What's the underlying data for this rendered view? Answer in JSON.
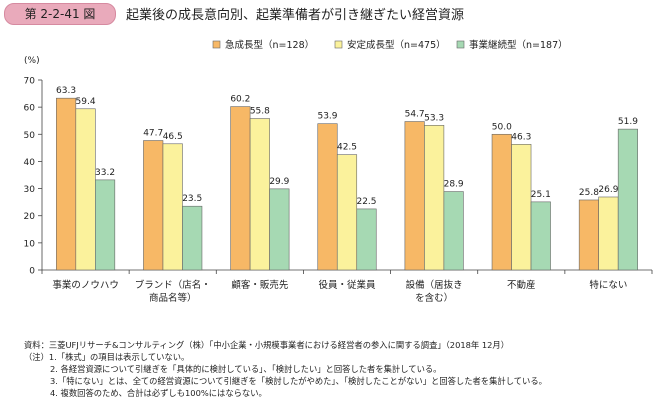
{
  "header": {
    "badge": "第 2-2-41 図",
    "title": "起業後の成長意向別、起業準備者が引き継ぎたい経営資源"
  },
  "chart_data": {
    "type": "bar",
    "title": "起業後の成長意向別、起業準備者が引き継ぎたい経営資源",
    "ylabel": "(%)",
    "xlabel": "",
    "ylim": [
      0,
      70
    ],
    "yticks": [
      0,
      10,
      20,
      30,
      40,
      50,
      60,
      70
    ],
    "categories": [
      [
        "事業のノウハウ"
      ],
      [
        "ブランド（店名・",
        "商品名等）"
      ],
      [
        "顧客・販売先"
      ],
      [
        "役員・従業員"
      ],
      [
        "設備（居抜き",
        "を含む）"
      ],
      [
        "不動産"
      ],
      [
        "特にない"
      ]
    ],
    "series": [
      {
        "name": "急成長型（n=128）",
        "color": "#f7b866",
        "values": [
          63.3,
          47.7,
          60.2,
          53.9,
          54.7,
          50.0,
          25.8
        ]
      },
      {
        "name": "安定成長型（n=475）",
        "color": "#fbf29c",
        "values": [
          59.4,
          46.5,
          55.8,
          42.5,
          53.3,
          46.3,
          26.9
        ]
      },
      {
        "name": "事業継続型（n=187）",
        "color": "#a6d9b3",
        "values": [
          33.2,
          23.5,
          29.9,
          22.5,
          28.9,
          25.1,
          51.9
        ]
      }
    ],
    "legend": "top-right",
    "grid": false
  },
  "notes": [
    "資料：三菱UFJリサーチ&コンサルティング（株）「中小企業・小規模事業者における経営者の参入に関する調査」（2018年 12月）",
    "（注）1.「株式」の項目は表示していない。",
    "2. 各経営資源について引継ぎを「具体的に検討している」、「検討したい」と回答した者を集計している。",
    "3.「特にない」とは、全ての経営資源について引継ぎを「検討したがやめた」、「検討したことがない」と回答した者を集計している。",
    "4. 複数回答のため、合計は必ずしも100%にはならない。"
  ]
}
